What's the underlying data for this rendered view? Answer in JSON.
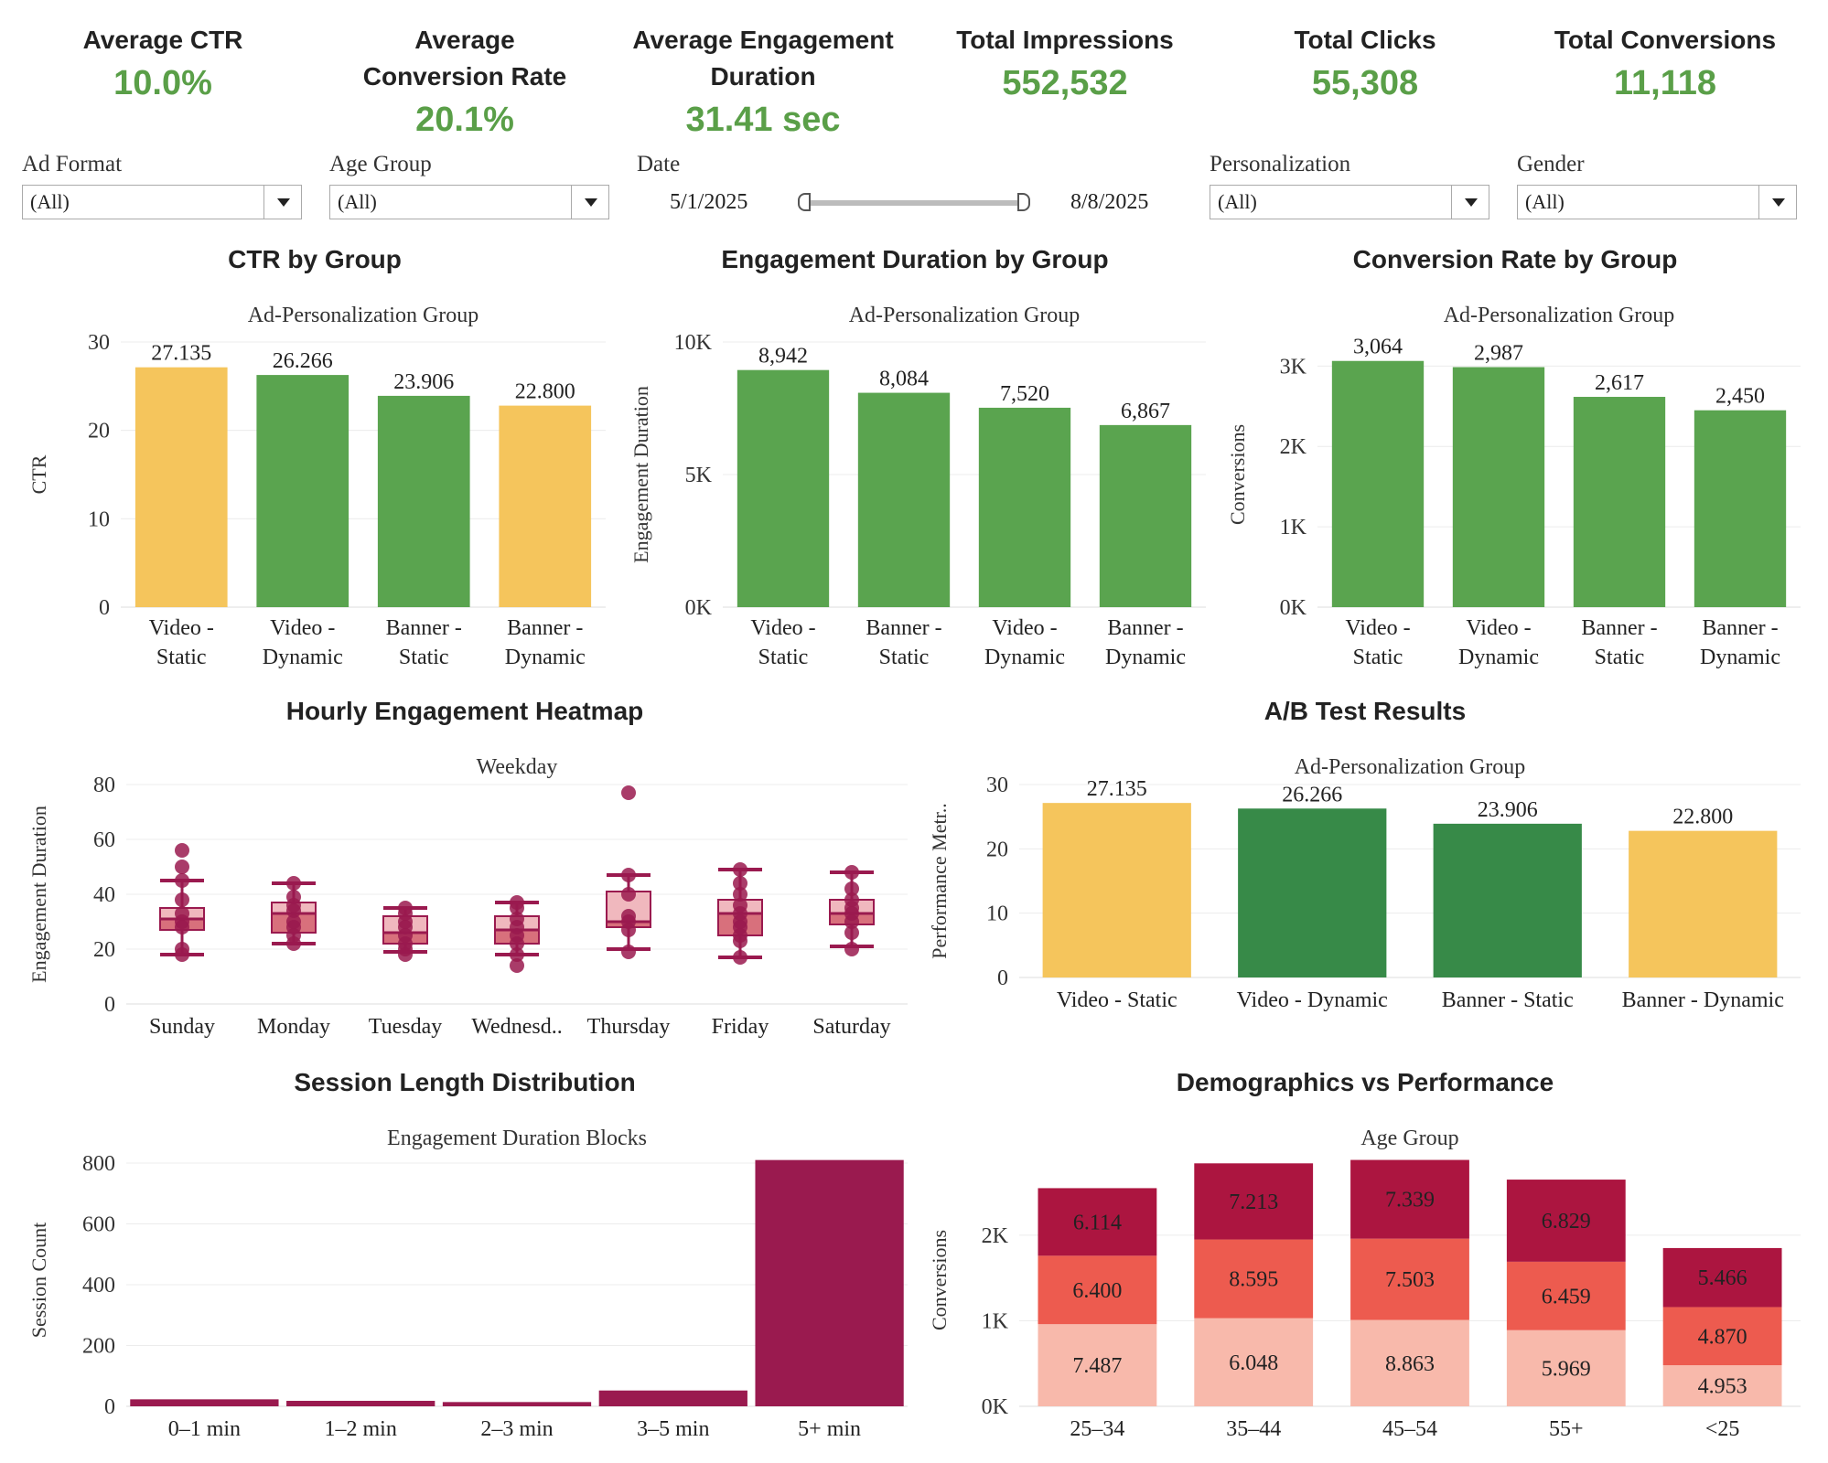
{
  "kpis": [
    {
      "title": "Average CTR",
      "value": "10.0%"
    },
    {
      "title": "Average Conversion Rate",
      "value": "20.1%"
    },
    {
      "title": "Average Engagement Duration",
      "value": "31.41 sec"
    },
    {
      "title": "Total Impressions",
      "value": "552,532"
    },
    {
      "title": "Total Clicks",
      "value": "55,308"
    },
    {
      "title": "Total Conversions",
      "value": "11,118"
    }
  ],
  "filters": {
    "ad_format": {
      "label": "Ad Format",
      "value": "(All)"
    },
    "age_group": {
      "label": "Age Group",
      "value": "(All)"
    },
    "date": {
      "label": "Date",
      "start": "5/1/2025",
      "end": "8/8/2025"
    },
    "personalization": {
      "label": "Personalization",
      "value": "(All)"
    },
    "gender": {
      "label": "Gender",
      "value": "(All)"
    }
  },
  "titles": {
    "ctr": "CTR by Group",
    "engagement": "Engagement Duration by Group",
    "conversion": "Conversion Rate by Group",
    "heatmap": "Hourly Engagement Heatmap",
    "ab": "A/B Test Results",
    "session": "Session Length Distribution",
    "demo": "Demographics vs Performance"
  },
  "colors": {
    "green": "#5aa44f",
    "dark_green": "#378a48",
    "yellow": "#f5c55c",
    "maroon": "#9a1a4f"
  },
  "chart_data": [
    {
      "id": "ctr",
      "type": "bar",
      "header": "Ad-Personalization Group",
      "ylabel": "CTR",
      "categories": [
        "Video - Static",
        "Video - Dynamic",
        "Banner - Static",
        "Banner - Dynamic"
      ],
      "values": [
        27.135,
        26.266,
        23.906,
        22.8
      ],
      "labels": [
        "27.135",
        "26.266",
        "23.906",
        "22.800"
      ],
      "colors": [
        "#f5c55c",
        "#5aa44f",
        "#5aa44f",
        "#f5c55c"
      ],
      "ylim": [
        0,
        30
      ],
      "yticks": [
        0,
        10,
        20,
        30
      ],
      "yticklabels": [
        "0",
        "10",
        "20",
        "30"
      ]
    },
    {
      "id": "engagement",
      "type": "bar",
      "header": "Ad-Personalization Group",
      "ylabel": "Engagement Duration",
      "categories": [
        "Video - Static",
        "Banner - Static",
        "Video - Dynamic",
        "Banner - Dynamic"
      ],
      "values": [
        8942,
        8084,
        7520,
        6867
      ],
      "labels": [
        "8,942",
        "8,084",
        "7,520",
        "6,867"
      ],
      "colors": [
        "#5aa44f",
        "#5aa44f",
        "#5aa44f",
        "#5aa44f"
      ],
      "ylim": [
        0,
        10000
      ],
      "yticks": [
        0,
        5000,
        10000
      ],
      "yticklabels": [
        "0K",
        "5K",
        "10K"
      ]
    },
    {
      "id": "conversion",
      "type": "bar",
      "header": "Ad-Personalization Group",
      "ylabel": "Conversions",
      "categories": [
        "Video - Static",
        "Video - Dynamic",
        "Banner - Static",
        "Banner - Dynamic"
      ],
      "values": [
        3064,
        2987,
        2617,
        2450
      ],
      "labels": [
        "3,064",
        "2,987",
        "2,617",
        "2,450"
      ],
      "colors": [
        "#5aa44f",
        "#5aa44f",
        "#5aa44f",
        "#5aa44f"
      ],
      "ylim": [
        0,
        3300
      ],
      "yticks": [
        0,
        1000,
        2000,
        3000
      ],
      "yticklabels": [
        "0K",
        "1K",
        "2K",
        "3K"
      ]
    },
    {
      "id": "heatmap",
      "type": "box",
      "header": "Weekday",
      "ylabel": "Engagement Duration",
      "categories": [
        "Sunday",
        "Monday",
        "Tuesday",
        "Wednesd..",
        "Thursday",
        "Friday",
        "Saturday"
      ],
      "boxes": [
        {
          "min": 18,
          "q1": 27,
          "median": 31,
          "q3": 35,
          "max": 45,
          "points": [
            18,
            20,
            28,
            30,
            33,
            38,
            45,
            50,
            56
          ]
        },
        {
          "min": 22,
          "q1": 26,
          "median": 33,
          "q3": 37,
          "max": 44,
          "points": [
            22,
            25,
            28,
            30,
            34,
            36,
            39,
            44
          ]
        },
        {
          "min": 19,
          "q1": 22,
          "median": 26,
          "q3": 32,
          "max": 35,
          "points": [
            18,
            20,
            22,
            25,
            28,
            30,
            33,
            35
          ]
        },
        {
          "min": 18,
          "q1": 22,
          "median": 27,
          "q3": 32,
          "max": 37,
          "points": [
            14,
            18,
            22,
            25,
            28,
            31,
            35,
            37
          ]
        },
        {
          "min": 20,
          "q1": 28,
          "median": 30,
          "q3": 41,
          "max": 47,
          "points": [
            19,
            27,
            30,
            32,
            40,
            47,
            77
          ]
        },
        {
          "min": 17,
          "q1": 25,
          "median": 33,
          "q3": 38,
          "max": 49,
          "points": [
            17,
            23,
            25,
            28,
            30,
            33,
            36,
            40,
            44,
            49
          ]
        },
        {
          "min": 21,
          "q1": 29,
          "median": 33,
          "q3": 38,
          "max": 48,
          "points": [
            20,
            26,
            30,
            33,
            35,
            38,
            42,
            48
          ]
        }
      ],
      "ylim": [
        0,
        80
      ],
      "yticks": [
        0,
        20,
        40,
        60,
        80
      ],
      "yticklabels": [
        "0",
        "20",
        "40",
        "60",
        "80"
      ]
    },
    {
      "id": "ab",
      "type": "bar",
      "header": "Ad-Personalization Group",
      "ylabel": "Performance Metr..",
      "categories": [
        "Video - Static",
        "Video - Dynamic",
        "Banner - Static",
        "Banner - Dynamic"
      ],
      "values": [
        27.135,
        26.266,
        23.906,
        22.8
      ],
      "labels": [
        "27.135",
        "26.266",
        "23.906",
        "22.800"
      ],
      "colors": [
        "#f5c55c",
        "#378a48",
        "#378a48",
        "#f5c55c"
      ],
      "ylim": [
        0,
        30
      ],
      "yticks": [
        0,
        10,
        20,
        30
      ],
      "yticklabels": [
        "0",
        "10",
        "20",
        "30"
      ]
    },
    {
      "id": "session",
      "type": "bar",
      "header": "Engagement Duration Blocks",
      "ylabel": "Session Count",
      "categories": [
        "0–1 min",
        "1–2 min",
        "2–3 min",
        "3–5 min",
        "5+ min"
      ],
      "values": [
        23,
        18,
        14,
        52,
        810
      ],
      "labels": [
        "",
        "",
        "",
        "",
        ""
      ],
      "colors": [
        "#9a1a4f",
        "#9a1a4f",
        "#9a1a4f",
        "#9a1a4f",
        "#9a1a4f"
      ],
      "ylim": [
        0,
        830
      ],
      "yticks": [
        0,
        200,
        400,
        600,
        800
      ],
      "yticklabels": [
        "0",
        "200",
        "400",
        "600",
        "800"
      ]
    },
    {
      "id": "demo",
      "type": "stacked_bar",
      "header": "Age Group",
      "ylabel": "Conversions",
      "categories": [
        "25–34",
        "35–44",
        "45–54",
        "55+",
        "<25"
      ],
      "series": [
        {
          "values": [
            960,
            1030,
            1010,
            890,
            480
          ],
          "labels": [
            "7.487",
            "6.048",
            "8.863",
            "5.969",
            "4.953"
          ],
          "color": "#f8b9ab"
        },
        {
          "values": [
            800,
            920,
            950,
            800,
            680
          ],
          "labels": [
            "6.400",
            "8.595",
            "7.503",
            "6.459",
            "4.870"
          ],
          "color": "#ed5b4f"
        },
        {
          "values": [
            790,
            890,
            920,
            960,
            690
          ],
          "labels": [
            "6.114",
            "7.213",
            "7.339",
            "6.829",
            "5.466"
          ],
          "color": "#ac1540"
        }
      ],
      "ylim": [
        0,
        2950
      ],
      "yticks": [
        0,
        1000,
        2000
      ],
      "yticklabels": [
        "0K",
        "1K",
        "2K"
      ]
    }
  ]
}
